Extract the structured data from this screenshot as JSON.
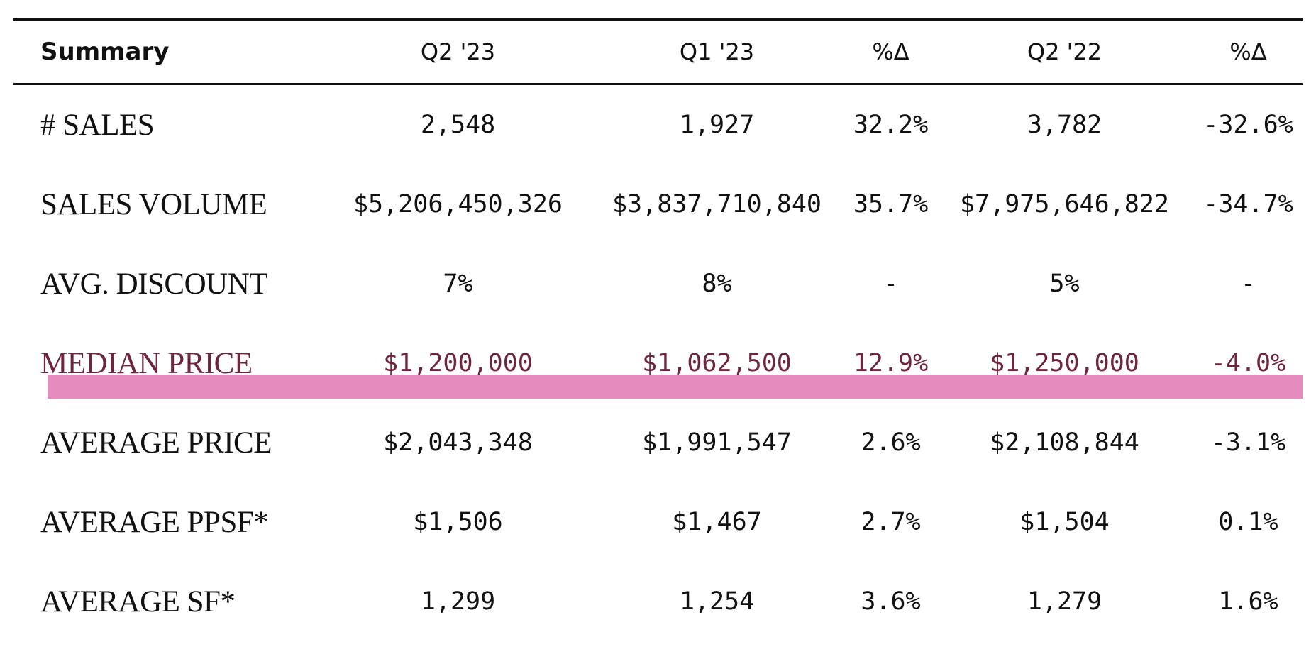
{
  "header": {
    "summary": "Summary",
    "col1": "Q2 '23",
    "col2": "Q1 '23",
    "col3": "%Δ",
    "col4": "Q2 '22",
    "col5": "%Δ"
  },
  "rows": [
    {
      "label": "# SALES",
      "q2_23": "2,548",
      "q1_23": "1,927",
      "pct1": "32.2%",
      "q2_22": "3,782",
      "pct2": "-32.6%"
    },
    {
      "label": "SALES VOLUME",
      "q2_23": "$5,206,450,326",
      "q1_23": "$3,837,710,840",
      "pct1": "35.7%",
      "q2_22": "$7,975,646,822",
      "pct2": "-34.7%"
    },
    {
      "label": "AVG. DISCOUNT",
      "q2_23": "7%",
      "q1_23": "8%",
      "pct1": "-",
      "q2_22": "5%",
      "pct2": "-"
    },
    {
      "label": "MEDIAN PRICE",
      "q2_23": "$1,200,000",
      "q1_23": "$1,062,500",
      "pct1": "12.9%",
      "q2_22": "$1,250,000",
      "pct2": "-4.0%"
    },
    {
      "label": "AVERAGE PRICE",
      "q2_23": "$2,043,348",
      "q1_23": "$1,991,547",
      "pct1": "2.6%",
      "q2_22": "$2,108,844",
      "pct2": "-3.1%"
    },
    {
      "label": "AVERAGE PPSF*",
      "q2_23": "$1,506",
      "q1_23": "$1,467",
      "pct1": "2.7%",
      "q2_22": "$1,504",
      "pct2": "0.1%"
    },
    {
      "label": "AVERAGE SF*",
      "q2_23": "1,299",
      "q1_23": "1,254",
      "pct1": "3.6%",
      "q2_22": "1,279",
      "pct2": "1.6%"
    }
  ],
  "highlight": {
    "row_label": "MEDIAN PRICE",
    "color": "#e68bbd",
    "text_color": "#6e2640"
  }
}
